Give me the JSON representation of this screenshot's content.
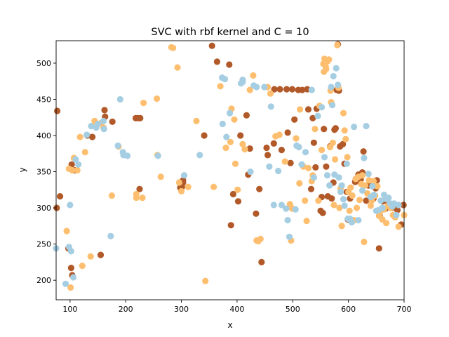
{
  "chart_data": {
    "type": "scatter",
    "title": "SVC with rbf kernel and C = 10",
    "xlabel": "x",
    "ylabel": "y",
    "xlim": [
      75,
      700
    ],
    "ylim": [
      173,
      531
    ],
    "xticks": [
      100,
      200,
      300,
      400,
      500,
      600,
      700
    ],
    "yticks": [
      200,
      250,
      300,
      350,
      400,
      450,
      500
    ],
    "grid": false,
    "legend": "none",
    "series": [
      {
        "color": "#b15928",
        "points": [
          [
            77,
            434
          ],
          [
            76,
            300
          ],
          [
            82,
            316
          ],
          [
            97,
            244
          ],
          [
            102,
            217
          ],
          [
            104,
            207
          ],
          [
            103,
            360
          ],
          [
            108,
            352
          ],
          [
            131,
            400
          ],
          [
            140,
            398
          ],
          [
            155,
            235
          ],
          [
            162,
            435
          ],
          [
            163,
            426
          ],
          [
            176,
            419
          ],
          [
            218,
            424
          ],
          [
            222,
            424
          ],
          [
            225,
            326
          ],
          [
            226,
            424
          ],
          [
            298,
            328
          ],
          [
            301,
            329
          ],
          [
            303,
            338
          ],
          [
            303,
            335
          ],
          [
            341,
            400
          ],
          [
            355,
            524
          ],
          [
            364,
            502
          ],
          [
            386,
            498
          ],
          [
            389,
            276
          ],
          [
            393,
            319
          ],
          [
            402,
            309
          ],
          [
            406,
            400
          ],
          [
            417,
            428
          ],
          [
            420,
            346
          ],
          [
            423,
            382
          ],
          [
            434,
            292
          ],
          [
            440,
            326
          ],
          [
            444,
            225
          ],
          [
            453,
            383
          ],
          [
            455,
            373
          ],
          [
            466,
            389
          ],
          [
            467,
            464
          ],
          [
            477,
            464
          ],
          [
            480,
            380
          ],
          [
            489,
            464
          ],
          [
            491,
            404
          ],
          [
            496,
            362
          ],
          [
            499,
            464
          ],
          [
            503,
            422
          ],
          [
            510,
            463
          ],
          [
            517,
            463
          ],
          [
            526,
            464
          ],
          [
            528,
            436
          ],
          [
            533,
            326
          ],
          [
            536,
            424
          ],
          [
            538,
            390
          ],
          [
            541,
            356
          ],
          [
            543,
            437
          ],
          [
            550,
            296
          ],
          [
            552,
            315
          ],
          [
            554,
            293
          ],
          [
            556,
            409
          ],
          [
            560,
            357
          ],
          [
            563,
            316
          ],
          [
            567,
            385
          ],
          [
            570,
            313
          ],
          [
            573,
            335
          ],
          [
            575,
            408
          ],
          [
            577,
            410
          ],
          [
            579,
            463
          ],
          [
            581,
            526
          ],
          [
            583,
            462
          ],
          [
            585,
            385
          ],
          [
            590,
            388
          ],
          [
            593,
            361
          ],
          [
            597,
            322
          ],
          [
            599,
            284
          ],
          [
            603,
            313
          ],
          [
            612,
            336
          ],
          [
            615,
            337
          ],
          [
            618,
            346
          ],
          [
            622,
            339
          ],
          [
            625,
            349
          ],
          [
            627,
            378
          ],
          [
            632,
            310
          ],
          [
            636,
            331
          ],
          [
            645,
            313
          ],
          [
            649,
            327
          ],
          [
            651,
            338
          ],
          [
            655,
            244
          ],
          [
            656,
            289
          ],
          [
            662,
            309
          ],
          [
            667,
            299
          ],
          [
            672,
            307
          ],
          [
            678,
            300
          ],
          [
            683,
            303
          ],
          [
            688,
            297
          ],
          [
            699,
            304
          ],
          [
            695,
            277
          ]
        ]
      },
      {
        "color": "#fdbf6f",
        "points": [
          [
            94,
            268
          ],
          [
            98,
            354
          ],
          [
            101,
            190
          ],
          [
            104,
            352
          ],
          [
            107,
            369
          ],
          [
            113,
            352
          ],
          [
            118,
            398
          ],
          [
            122,
            220
          ],
          [
            127,
            377
          ],
          [
            137,
            233
          ],
          [
            144,
            420
          ],
          [
            146,
            418
          ],
          [
            155,
            417
          ],
          [
            160,
            411
          ],
          [
            175,
            317
          ],
          [
            187,
            385
          ],
          [
            219,
            314
          ],
          [
            219,
            319
          ],
          [
            230,
            314
          ],
          [
            232,
            445
          ],
          [
            256,
            451
          ],
          [
            257,
            373
          ],
          [
            263,
            343
          ],
          [
            282,
            522
          ],
          [
            285,
            521
          ],
          [
            293,
            494
          ],
          [
            296,
            335
          ],
          [
            300,
            323
          ],
          [
            312,
            329
          ],
          [
            327,
            420
          ],
          [
            343,
            199
          ],
          [
            358,
            329
          ],
          [
            370,
            468
          ],
          [
            380,
            383
          ],
          [
            388,
            391
          ],
          [
            390,
            437
          ],
          [
            395,
            422
          ],
          [
            397,
            361
          ],
          [
            401,
            325
          ],
          [
            410,
            388
          ],
          [
            414,
            381
          ],
          [
            423,
            463
          ],
          [
            429,
            483
          ],
          [
            435,
            255
          ],
          [
            438,
            254
          ],
          [
            442,
            257
          ],
          [
            455,
            467
          ],
          [
            460,
            458
          ],
          [
            469,
            399
          ],
          [
            476,
            401
          ],
          [
            486,
            364
          ],
          [
            495,
            305
          ],
          [
            497,
            255
          ],
          [
            499,
            299
          ],
          [
            506,
            396
          ],
          [
            512,
            334
          ],
          [
            513,
            436
          ],
          [
            519,
            357
          ],
          [
            522,
            310
          ],
          [
            525,
            282
          ],
          [
            528,
            355
          ],
          [
            534,
            337
          ],
          [
            536,
            345
          ],
          [
            540,
            409
          ],
          [
            546,
            310
          ],
          [
            548,
            441
          ],
          [
            552,
            380
          ],
          [
            555,
            499
          ],
          [
            556,
            488
          ],
          [
            557,
            506
          ],
          [
            559,
            496
          ],
          [
            560,
            492
          ],
          [
            563,
            503
          ],
          [
            565,
            505
          ],
          [
            567,
            384
          ],
          [
            568,
            462
          ],
          [
            569,
            446
          ],
          [
            572,
            390
          ],
          [
            574,
            304
          ],
          [
            576,
            367
          ],
          [
            580,
            525
          ],
          [
            582,
            466
          ],
          [
            584,
            300
          ],
          [
            586,
            327
          ],
          [
            588,
            275
          ],
          [
            591,
            431
          ],
          [
            593,
            407
          ],
          [
            595,
            395
          ],
          [
            598,
            370
          ],
          [
            600,
            322
          ],
          [
            602,
            296
          ],
          [
            604,
            328
          ],
          [
            607,
            317
          ],
          [
            610,
            283
          ],
          [
            613,
            340
          ],
          [
            615,
            300
          ],
          [
            618,
            343
          ],
          [
            620,
            311
          ],
          [
            623,
            333
          ],
          [
            625,
            345
          ],
          [
            628,
            253
          ],
          [
            630,
            331
          ],
          [
            634,
            320
          ],
          [
            637,
            338
          ],
          [
            640,
            303
          ],
          [
            642,
            310
          ],
          [
            645,
            337
          ],
          [
            648,
            317
          ],
          [
            652,
            330
          ],
          [
            655,
            289
          ],
          [
            658,
            296
          ],
          [
            661,
            284
          ],
          [
            664,
            298
          ],
          [
            668,
            279
          ],
          [
            671,
            303
          ],
          [
            676,
            300
          ],
          [
            680,
            290
          ],
          [
            684,
            287
          ],
          [
            690,
            274
          ],
          [
            700,
            290
          ]
        ]
      },
      {
        "color": "#a6cee3",
        "points": [
          [
            75,
            244
          ],
          [
            92,
            195
          ],
          [
            98,
            246
          ],
          [
            100,
            304
          ],
          [
            102,
            240
          ],
          [
            106,
            204
          ],
          [
            110,
            367
          ],
          [
            115,
            360
          ],
          [
            130,
            401
          ],
          [
            138,
            413
          ],
          [
            147,
            411
          ],
          [
            150,
            416
          ],
          [
            160,
            420
          ],
          [
            161,
            409
          ],
          [
            173,
            261
          ],
          [
            186,
            386
          ],
          [
            190,
            450
          ],
          [
            195,
            377
          ],
          [
            196,
            373
          ],
          [
            203,
            372
          ],
          [
            258,
            372
          ],
          [
            305,
            345
          ],
          [
            333,
            373
          ],
          [
            373,
            480
          ],
          [
            374,
            416
          ],
          [
            378,
            478
          ],
          [
            381,
            398
          ],
          [
            387,
            431
          ],
          [
            407,
            472
          ],
          [
            410,
            474
          ],
          [
            410,
            477
          ],
          [
            424,
            350
          ],
          [
            430,
            469
          ],
          [
            435,
            467
          ],
          [
            449,
            467
          ],
          [
            458,
            357
          ],
          [
            461,
            440
          ],
          [
            466,
            304
          ],
          [
            474,
            351
          ],
          [
            480,
            304
          ],
          [
            488,
            299
          ],
          [
            491,
            283
          ],
          [
            494,
            260
          ],
          [
            505,
            298
          ],
          [
            507,
            386
          ],
          [
            511,
            384
          ],
          [
            516,
            360
          ],
          [
            523,
            377
          ],
          [
            534,
            463
          ],
          [
            538,
            342
          ],
          [
            545,
            427
          ],
          [
            552,
            439
          ],
          [
            557,
            370
          ],
          [
            562,
            345
          ],
          [
            566,
            331
          ],
          [
            569,
            467
          ],
          [
            571,
            442
          ],
          [
            573,
            482
          ],
          [
            575,
            346
          ],
          [
            578,
            493
          ],
          [
            581,
            470
          ],
          [
            583,
            342
          ],
          [
            586,
            322
          ],
          [
            588,
            331
          ],
          [
            591,
            312
          ],
          [
            593,
            303
          ],
          [
            597,
            361
          ],
          [
            599,
            285
          ],
          [
            603,
            285
          ],
          [
            606,
            280
          ],
          [
            610,
            412
          ],
          [
            618,
            283
          ],
          [
            625,
            324
          ],
          [
            628,
            369
          ],
          [
            632,
            413
          ],
          [
            636,
            347
          ],
          [
            640,
            315
          ],
          [
            643,
            330
          ],
          [
            646,
            318
          ],
          [
            650,
            296
          ],
          [
            654,
            297
          ],
          [
            658,
            310
          ],
          [
            661,
            300
          ],
          [
            664,
            318
          ],
          [
            668,
            312
          ],
          [
            672,
            314
          ],
          [
            675,
            306
          ],
          [
            679,
            302
          ],
          [
            682,
            306
          ],
          [
            686,
            290
          ],
          [
            690,
            304
          ]
        ]
      }
    ]
  }
}
